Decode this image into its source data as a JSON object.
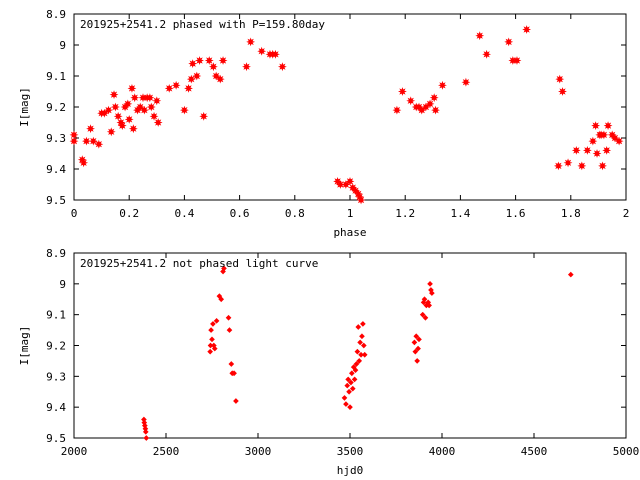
{
  "chart_data": [
    {
      "type": "scatter",
      "title": "201925+2541.2 phased with P=159.80day",
      "xlabel": "phase",
      "ylabel": "I[mag]",
      "xlim": [
        0,
        2
      ],
      "ylim": [
        9.5,
        8.9
      ],
      "y_inverted": true,
      "xticks": [
        0,
        0.2,
        0.4,
        0.6,
        0.8,
        1,
        1.2,
        1.4,
        1.6,
        1.8,
        2
      ],
      "xtick_labels": [
        "0",
        "0.2",
        "0.4",
        "0.6",
        "0.8",
        "1",
        "1.2",
        "1.4",
        "1.6",
        "1.8",
        "2"
      ],
      "yticks": [
        8.9,
        9,
        9.1,
        9.2,
        9.3,
        9.4,
        9.5
      ],
      "ytick_labels": [
        "8.9",
        "9",
        "9.1",
        "9.2",
        "9.3",
        "9.4",
        "9.5"
      ],
      "grid": false,
      "marker_color": "#ff0000",
      "marker_shape": "star",
      "series": [
        {
          "points": [
            [
              0.0,
              9.29
            ],
            [
              0.0,
              9.31
            ],
            [
              0.03,
              9.37
            ],
            [
              0.035,
              9.38
            ],
            [
              0.045,
              9.31
            ],
            [
              0.06,
              9.27
            ],
            [
              0.07,
              9.31
            ],
            [
              0.09,
              9.32
            ],
            [
              0.1,
              9.22
            ],
            [
              0.11,
              9.22
            ],
            [
              0.125,
              9.21
            ],
            [
              0.135,
              9.28
            ],
            [
              0.145,
              9.16
            ],
            [
              0.15,
              9.2
            ],
            [
              0.16,
              9.23
            ],
            [
              0.17,
              9.25
            ],
            [
              0.175,
              9.26
            ],
            [
              0.185,
              9.2
            ],
            [
              0.195,
              9.19
            ],
            [
              0.2,
              9.24
            ],
            [
              0.21,
              9.14
            ],
            [
              0.215,
              9.27
            ],
            [
              0.22,
              9.17
            ],
            [
              0.23,
              9.21
            ],
            [
              0.24,
              9.2
            ],
            [
              0.25,
              9.17
            ],
            [
              0.255,
              9.21
            ],
            [
              0.265,
              9.17
            ],
            [
              0.275,
              9.17
            ],
            [
              0.28,
              9.2
            ],
            [
              0.29,
              9.23
            ],
            [
              0.3,
              9.18
            ],
            [
              0.305,
              9.25
            ],
            [
              0.345,
              9.14
            ],
            [
              0.37,
              9.13
            ],
            [
              0.4,
              9.21
            ],
            [
              0.415,
              9.14
            ],
            [
              0.425,
              9.11
            ],
            [
              0.43,
              9.06
            ],
            [
              0.445,
              9.1
            ],
            [
              0.455,
              9.05
            ],
            [
              0.47,
              9.23
            ],
            [
              0.49,
              9.05
            ],
            [
              0.505,
              9.07
            ],
            [
              0.515,
              9.1
            ],
            [
              0.53,
              9.11
            ],
            [
              0.54,
              9.05
            ],
            [
              0.625,
              9.07
            ],
            [
              0.64,
              8.99
            ],
            [
              0.68,
              9.02
            ],
            [
              0.71,
              9.03
            ],
            [
              0.72,
              9.03
            ],
            [
              0.73,
              9.03
            ],
            [
              0.755,
              9.07
            ],
            [
              0.955,
              9.44
            ],
            [
              0.965,
              9.45
            ],
            [
              0.985,
              9.45
            ],
            [
              1.0,
              9.44
            ],
            [
              1.01,
              9.46
            ],
            [
              1.02,
              9.47
            ],
            [
              1.03,
              9.48
            ],
            [
              1.035,
              9.49
            ],
            [
              1.04,
              9.5
            ],
            [
              1.17,
              9.21
            ],
            [
              1.19,
              9.15
            ],
            [
              1.22,
              9.18
            ],
            [
              1.24,
              9.2
            ],
            [
              1.25,
              9.2
            ],
            [
              1.26,
              9.21
            ],
            [
              1.275,
              9.2
            ],
            [
              1.29,
              9.19
            ],
            [
              1.305,
              9.17
            ],
            [
              1.31,
              9.21
            ],
            [
              1.335,
              9.13
            ],
            [
              1.42,
              9.12
            ],
            [
              1.47,
              8.97
            ],
            [
              1.495,
              9.03
            ],
            [
              1.575,
              8.99
            ],
            [
              1.59,
              9.05
            ],
            [
              1.605,
              9.05
            ],
            [
              1.64,
              8.95
            ],
            [
              1.755,
              9.39
            ],
            [
              1.76,
              9.11
            ],
            [
              1.77,
              9.15
            ],
            [
              1.79,
              9.38
            ],
            [
              1.82,
              9.34
            ],
            [
              1.84,
              9.39
            ],
            [
              1.86,
              9.34
            ],
            [
              1.88,
              9.31
            ],
            [
              1.89,
              9.26
            ],
            [
              1.895,
              9.35
            ],
            [
              1.905,
              9.29
            ],
            [
              1.91,
              9.29
            ],
            [
              1.915,
              9.39
            ],
            [
              1.92,
              9.29
            ],
            [
              1.93,
              9.34
            ],
            [
              1.935,
              9.26
            ],
            [
              1.95,
              9.29
            ],
            [
              1.96,
              9.3
            ],
            [
              1.975,
              9.31
            ]
          ]
        }
      ]
    },
    {
      "type": "scatter",
      "title": "201925+2541.2 not phased light curve",
      "xlabel": "hjd0",
      "ylabel": "I[mag]",
      "xlim": [
        2000,
        5000
      ],
      "ylim": [
        9.5,
        8.9
      ],
      "y_inverted": true,
      "xticks": [
        2000,
        2500,
        3000,
        3500,
        4000,
        4500,
        5000
      ],
      "xtick_labels": [
        "2000",
        "2500",
        "3000",
        "3500",
        "4000",
        "4500",
        "5000"
      ],
      "yticks": [
        8.9,
        9,
        9.1,
        9.2,
        9.3,
        9.4,
        9.5
      ],
      "ytick_labels": [
        "8.9",
        "9",
        "9.1",
        "9.2",
        "9.3",
        "9.4",
        "9.5"
      ],
      "grid": false,
      "marker_color": "#ff0000",
      "marker_shape": "diamond",
      "series": [
        {
          "points": [
            [
              2380,
              9.44
            ],
            [
              2382,
              9.45
            ],
            [
              2385,
              9.46
            ],
            [
              2388,
              9.47
            ],
            [
              2390,
              9.48
            ],
            [
              2393,
              9.5
            ],
            [
              2740,
              9.22
            ],
            [
              2742,
              9.2
            ],
            [
              2745,
              9.15
            ],
            [
              2750,
              9.18
            ],
            [
              2755,
              9.13
            ],
            [
              2760,
              9.2
            ],
            [
              2765,
              9.21
            ],
            [
              2775,
              9.12
            ],
            [
              2790,
              9.04
            ],
            [
              2800,
              9.05
            ],
            [
              2810,
              8.96
            ],
            [
              2815,
              8.95
            ],
            [
              2840,
              9.11
            ],
            [
              2845,
              9.15
            ],
            [
              2855,
              9.26
            ],
            [
              2860,
              9.29
            ],
            [
              2870,
              9.29
            ],
            [
              2880,
              9.38
            ],
            [
              3470,
              9.37
            ],
            [
              3478,
              9.39
            ],
            [
              3485,
              9.33
            ],
            [
              3490,
              9.31
            ],
            [
              3495,
              9.35
            ],
            [
              3500,
              9.4
            ],
            [
              3505,
              9.32
            ],
            [
              3510,
              9.29
            ],
            [
              3515,
              9.34
            ],
            [
              3520,
              9.27
            ],
            [
              3525,
              9.31
            ],
            [
              3530,
              9.28
            ],
            [
              3535,
              9.26
            ],
            [
              3540,
              9.22
            ],
            [
              3545,
              9.14
            ],
            [
              3550,
              9.25
            ],
            [
              3555,
              9.19
            ],
            [
              3560,
              9.23
            ],
            [
              3565,
              9.17
            ],
            [
              3570,
              9.13
            ],
            [
              3575,
              9.2
            ],
            [
              3580,
              9.23
            ],
            [
              3850,
              9.19
            ],
            [
              3855,
              9.22
            ],
            [
              3860,
              9.17
            ],
            [
              3865,
              9.25
            ],
            [
              3870,
              9.21
            ],
            [
              3875,
              9.18
            ],
            [
              3895,
              9.1
            ],
            [
              3900,
              9.06
            ],
            [
              3905,
              9.05
            ],
            [
              3910,
              9.11
            ],
            [
              3915,
              9.07
            ],
            [
              3925,
              9.06
            ],
            [
              3930,
              9.07
            ],
            [
              3935,
              9.0
            ],
            [
              3940,
              9.02
            ],
            [
              3945,
              9.03
            ],
            [
              4700,
              8.97
            ]
          ]
        }
      ]
    }
  ]
}
